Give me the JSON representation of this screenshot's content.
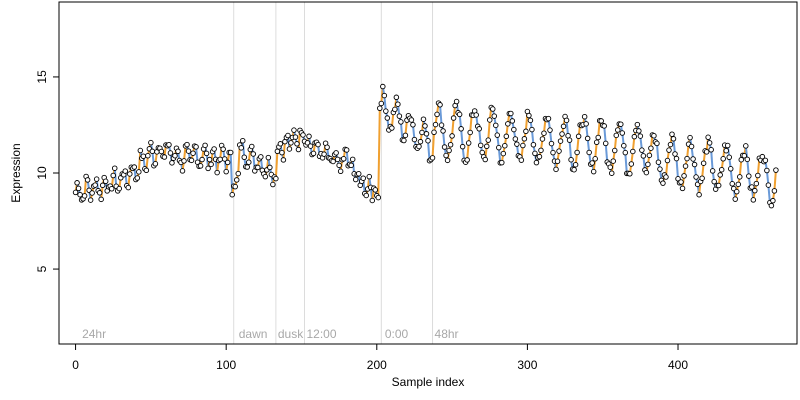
{
  "chart_data": {
    "type": "scatter",
    "title": "",
    "xlabel": "Sample index",
    "ylabel": "Expression",
    "xlim": [
      -11,
      479
    ],
    "ylim": [
      1.1,
      18.9
    ],
    "x_ticks": [
      0,
      100,
      200,
      300,
      400
    ],
    "y_ticks": [
      5,
      10,
      15
    ],
    "grid": false,
    "legend": "none",
    "colors": {
      "rise": "#f0a030",
      "fall": "#6a9ad8",
      "point_fill": "#ffffff",
      "point_stroke": "#000000",
      "annotation": "#a8a8a8",
      "vline": "#dcdcdc"
    },
    "annotations": [
      {
        "label": "24hr",
        "x": 3
      },
      {
        "label": "dawn",
        "x": 107
      },
      {
        "label": "dusk",
        "x": 133
      },
      {
        "label": "12:00",
        "x": 152
      },
      {
        "label": "0:00",
        "x": 204
      },
      {
        "label": "48hr",
        "x": 237
      }
    ],
    "vlines": [
      105,
      133,
      152,
      203,
      237
    ],
    "segments": [
      {
        "x0": 0,
        "x1": 103,
        "start": 9.0,
        "end": 10.8,
        "amp": 0.5,
        "period": 6,
        "bumps": [
          {
            "center": 55,
            "width": 16,
            "height": 1.2
          },
          {
            "center": 82,
            "width": 10,
            "height": 0.4
          }
        ]
      },
      {
        "x0": 104,
        "x1": 108,
        "start": 9.2,
        "end": 9.6,
        "amp": 0.3,
        "period": 3
      },
      {
        "x0": 109,
        "x1": 133,
        "start": 11.2,
        "end": 10.0,
        "amp": 0.4,
        "period": 6
      },
      {
        "x0": 134,
        "x1": 152,
        "start": 11.2,
        "end": 12.1,
        "amp": 0.4,
        "period": 5
      },
      {
        "x0": 153,
        "x1": 178,
        "start": 11.6,
        "end": 10.3,
        "amp": 0.4,
        "period": 6
      },
      {
        "x0": 179,
        "x1": 189,
        "start": 11.0,
        "end": 9.4,
        "amp": 0.4,
        "period": 4
      },
      {
        "x0": 190,
        "x1": 201,
        "start": 9.3,
        "end": 9.0,
        "amp": 0.3,
        "period": 4
      },
      {
        "x0": 202,
        "x1": 237,
        "start": 13.5,
        "end": 11.5,
        "amp": 0.8,
        "period": 9
      },
      {
        "x0": 238,
        "x1": 380,
        "start": 12.2,
        "end": 11.3,
        "amp": 1.3,
        "period": 12
      },
      {
        "x0": 381,
        "x1": 465,
        "start": 10.8,
        "end": 9.8,
        "amp": 1.2,
        "period": 12
      }
    ],
    "n_points": 466,
    "noise": 0.35,
    "seed": 7
  }
}
